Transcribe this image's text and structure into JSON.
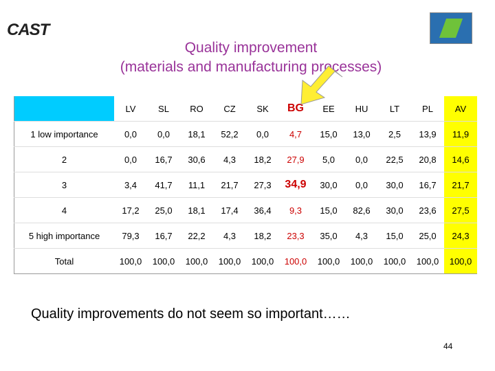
{
  "logo": "CAST",
  "title": [
    "Quality improvement",
    "(materials and manufacturing processes)"
  ],
  "table": {
    "columns": [
      "LV",
      "SL",
      "RO",
      "CZ",
      "SK",
      "BG",
      "EE",
      "HU",
      "LT",
      "PL",
      "AV"
    ],
    "rows": [
      {
        "label": "1 low importance",
        "values": [
          "0,0",
          "0,0",
          "18,1",
          "52,2",
          "0,0",
          "4,7",
          "15,0",
          "13,0",
          "2,5",
          "13,9",
          "11,9"
        ]
      },
      {
        "label": "2",
        "values": [
          "0,0",
          "16,7",
          "30,6",
          "4,3",
          "18,2",
          "27,9",
          "5,0",
          "0,0",
          "22,5",
          "20,8",
          "14,6"
        ]
      },
      {
        "label": "3",
        "values": [
          "3,4",
          "41,7",
          "11,1",
          "21,7",
          "27,3",
          "34,9",
          "30,0",
          "0,0",
          "30,0",
          "16,7",
          "21,7"
        ]
      },
      {
        "label": "4",
        "values": [
          "17,2",
          "25,0",
          "18,1",
          "17,4",
          "36,4",
          "9,3",
          "15,0",
          "82,6",
          "30,0",
          "23,6",
          "27,5"
        ]
      },
      {
        "label": "5 high importance",
        "values": [
          "79,3",
          "16,7",
          "22,2",
          "4,3",
          "18,2",
          "23,3",
          "35,0",
          "4,3",
          "15,0",
          "25,0",
          "24,3"
        ]
      },
      {
        "label": "Total",
        "values": [
          "100,0",
          "100,0",
          "100,0",
          "100,0",
          "100,0",
          "100,0",
          "100,0",
          "100,0",
          "100,0",
          "100,0",
          "100,0"
        ]
      }
    ]
  },
  "note": "Quality improvements do not seem so important……",
  "page_number": "44"
}
